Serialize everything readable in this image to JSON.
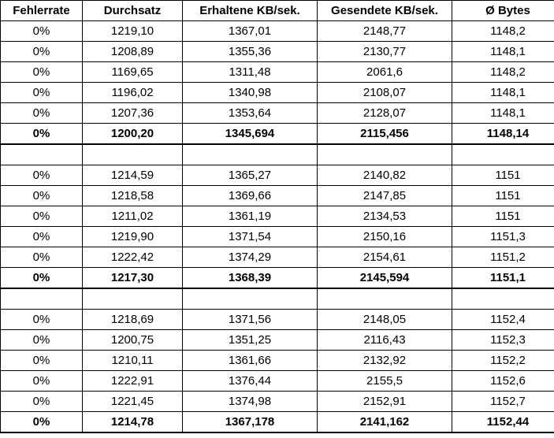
{
  "headers": [
    "Fehlerrate",
    "Durchsatz",
    "Erhaltene KB/sek.",
    "Gesendete KB/sek.",
    "Ø Bytes"
  ],
  "blocks": [
    {
      "rows": [
        [
          "0%",
          "1219,10",
          "1367,01",
          "2148,77",
          "1148,2"
        ],
        [
          "0%",
          "1208,89",
          "1355,36",
          "2130,77",
          "1148,1"
        ],
        [
          "0%",
          "1169,65",
          "1311,48",
          "2061,6",
          "1148,2"
        ],
        [
          "0%",
          "1196,02",
          "1340,98",
          "2108,07",
          "1148,1"
        ],
        [
          "0%",
          "1207,36",
          "1353,64",
          "2128,07",
          "1148,1"
        ]
      ],
      "summary": [
        "0%",
        "1200,20",
        "1345,694",
        "2115,456",
        "1148,14"
      ]
    },
    {
      "rows": [
        [
          "0%",
          "1214,59",
          "1365,27",
          "2140,82",
          "1151"
        ],
        [
          "0%",
          "1218,58",
          "1369,66",
          "2147,85",
          "1151"
        ],
        [
          "0%",
          "1211,02",
          "1361,19",
          "2134,53",
          "1151"
        ],
        [
          "0%",
          "1219,90",
          "1371,54",
          "2150,16",
          "1151,3"
        ],
        [
          "0%",
          "1222,42",
          "1374,29",
          "2154,61",
          "1151,2"
        ]
      ],
      "summary": [
        "0%",
        "1217,30",
        "1368,39",
        "2145,594",
        "1151,1"
      ]
    },
    {
      "rows": [
        [
          "0%",
          "1218,69",
          "1371,56",
          "2148,05",
          "1152,4"
        ],
        [
          "0%",
          "1200,75",
          "1351,25",
          "2116,43",
          "1152,3"
        ],
        [
          "0%",
          "1210,11",
          "1361,66",
          "2132,92",
          "1152,2"
        ],
        [
          "0%",
          "1222,91",
          "1376,44",
          "2155,5",
          "1152,6"
        ],
        [
          "0%",
          "1221,45",
          "1374,98",
          "2152,91",
          "1152,7"
        ]
      ],
      "summary": [
        "0%",
        "1214,78",
        "1367,178",
        "2141,162",
        "1152,44"
      ]
    }
  ]
}
